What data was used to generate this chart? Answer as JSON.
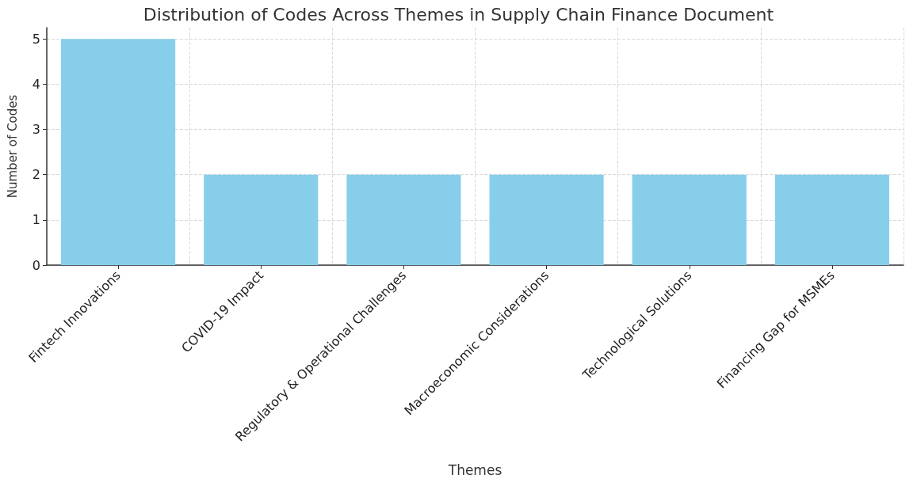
{
  "chart_data": {
    "type": "bar",
    "title": "Distribution of Codes Across Themes in Supply Chain Finance Document",
    "xlabel": "Themes",
    "ylabel": "Number of Codes",
    "categories": [
      "Fintech Innovations",
      "COVID-19 Impact",
      "Regulatory & Operational Challenges",
      "Macroeconomic Considerations",
      "Technological Solutions",
      "Financing Gap for MSMEs"
    ],
    "values": [
      5,
      2,
      2,
      2,
      2,
      2
    ],
    "color": "#87ceeb",
    "ylim": [
      0,
      5.25
    ],
    "yticks": [
      0,
      1,
      2,
      3,
      4,
      5
    ],
    "grid": true
  }
}
